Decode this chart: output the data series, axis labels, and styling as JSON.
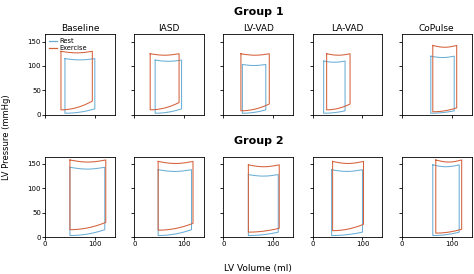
{
  "title_group1": "Group 1",
  "title_group2": "Group 2",
  "col_titles": [
    "Baseline",
    "IASD",
    "LV-VAD",
    "LA-VAD",
    "CoPulse"
  ],
  "ylabel": "LV Pressure (mmHg)",
  "xlabel": "LV Volume (ml)",
  "rest_color": "#6AAED6",
  "exercise_color": "#D4613A",
  "legend_labels": [
    "Rest",
    "Exercise"
  ],
  "loops": {
    "g1": [
      {
        "rest": {
          "edv": 100,
          "esv": 40,
          "esp": 115,
          "edp": 12,
          "dp_low": 3
        },
        "exercise": {
          "edv": 95,
          "esv": 32,
          "esp": 130,
          "edp": 28,
          "dp_low": 10
        }
      },
      {
        "rest": {
          "edv": 95,
          "esv": 42,
          "esp": 112,
          "edp": 12,
          "dp_low": 3
        },
        "exercise": {
          "edv": 90,
          "esv": 32,
          "esp": 125,
          "edp": 25,
          "dp_low": 10
        }
      },
      {
        "rest": {
          "edv": 85,
          "esv": 38,
          "esp": 103,
          "edp": 10,
          "dp_low": 3
        },
        "exercise": {
          "edv": 92,
          "esv": 35,
          "esp": 125,
          "edp": 22,
          "dp_low": 8
        }
      },
      {
        "rest": {
          "edv": 65,
          "esv": 22,
          "esp": 110,
          "edp": 8,
          "dp_low": 3
        },
        "exercise": {
          "edv": 75,
          "esv": 28,
          "esp": 125,
          "edp": 22,
          "dp_low": 10
        }
      },
      {
        "rest": {
          "edv": 105,
          "esv": 58,
          "esp": 120,
          "edp": 8,
          "dp_low": 3
        },
        "exercise": {
          "edv": 110,
          "esv": 62,
          "esp": 142,
          "edp": 14,
          "dp_low": 6
        }
      }
    ],
    "g2": [
      {
        "rest": {
          "edv": 120,
          "esv": 50,
          "esp": 143,
          "edp": 15,
          "dp_low": 3
        },
        "exercise": {
          "edv": 122,
          "esv": 50,
          "esp": 158,
          "edp": 30,
          "dp_low": 15
        }
      },
      {
        "rest": {
          "edv": 115,
          "esv": 48,
          "esp": 138,
          "edp": 15,
          "dp_low": 3
        },
        "exercise": {
          "edv": 118,
          "esv": 48,
          "esp": 155,
          "edp": 28,
          "dp_low": 14
        }
      },
      {
        "rest": {
          "edv": 110,
          "esv": 50,
          "esp": 128,
          "edp": 10,
          "dp_low": 3
        },
        "exercise": {
          "edv": 112,
          "esv": 50,
          "esp": 148,
          "edp": 18,
          "dp_low": 10
        }
      },
      {
        "rest": {
          "edv": 100,
          "esv": 38,
          "esp": 138,
          "edp": 10,
          "dp_low": 3
        },
        "exercise": {
          "edv": 102,
          "esv": 40,
          "esp": 155,
          "edp": 26,
          "dp_low": 13
        }
      },
      {
        "rest": {
          "edv": 115,
          "esv": 62,
          "esp": 148,
          "edp": 10,
          "dp_low": 3
        },
        "exercise": {
          "edv": 120,
          "esv": 68,
          "esp": 158,
          "edp": 16,
          "dp_low": 8
        }
      }
    ]
  }
}
